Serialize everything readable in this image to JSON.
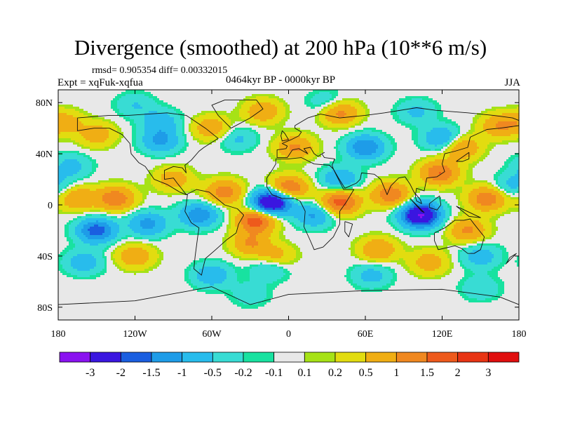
{
  "plot": {
    "title": "Divergence (smoothed) at 200 hPa (10**6 m/s)",
    "stats": "rmsd= 0.905354 diff= 0.00332015",
    "experiment": "Expt = xqFuk-xqfua",
    "period": "0464kyr BP - 0000kyr BP",
    "season": "JJA"
  },
  "chart_data": {
    "type": "heatmap",
    "projection": "cylindrical-equidistant",
    "title": "Divergence (smoothed) at 200 hPa (10**6 m/s)",
    "x_axis": {
      "range": [
        -180,
        180
      ],
      "ticks": [
        {
          "value": -180,
          "label": "180"
        },
        {
          "value": -120,
          "label": "120W"
        },
        {
          "value": -60,
          "label": "60W"
        },
        {
          "value": 0,
          "label": "0"
        },
        {
          "value": 60,
          "label": "60E"
        },
        {
          "value": 120,
          "label": "120E"
        },
        {
          "value": 180,
          "label": "180"
        }
      ]
    },
    "y_axis": {
      "range": [
        -90,
        90
      ],
      "ticks": [
        {
          "value": 80,
          "label": "80N"
        },
        {
          "value": 40,
          "label": "40N"
        },
        {
          "value": 0,
          "label": "0"
        },
        {
          "value": -40,
          "label": "40S"
        },
        {
          "value": -80,
          "label": "80S"
        }
      ]
    },
    "colorbar": {
      "levels": [
        "-3",
        "-2",
        "-1.5",
        "-1",
        "-0.5",
        "-0.2",
        "-0.1",
        "0.1",
        "0.2",
        "0.5",
        "1",
        "1.5",
        "2",
        "3"
      ],
      "colors": [
        "#8a12f0",
        "#3a16e0",
        "#1a5ee0",
        "#1e9ce8",
        "#28bcec",
        "#38dcd4",
        "#18e2a0",
        "#e8e8e8",
        "#a6e216",
        "#e2dc10",
        "#f0ae14",
        "#f08820",
        "#ee5a1c",
        "#e83414",
        "#e00e0e"
      ]
    },
    "features": [
      {
        "lon": -13,
        "lat": 2,
        "value": -3.2
      },
      {
        "lon": 103,
        "lat": -8,
        "value": -3.1
      },
      {
        "lon": -150,
        "lat": -20,
        "value": -1.8
      },
      {
        "lon": -110,
        "lat": -15,
        "value": -1.2
      },
      {
        "lon": -70,
        "lat": -8,
        "value": -1.4
      },
      {
        "lon": 20,
        "lat": -8,
        "value": -1.1
      },
      {
        "lon": 40,
        "lat": 20,
        "value": -1.0
      },
      {
        "lon": 60,
        "lat": 45,
        "value": -1.5
      },
      {
        "lon": 120,
        "lat": 52,
        "value": -1.1
      },
      {
        "lon": -100,
        "lat": 50,
        "value": -1.1
      },
      {
        "lon": -100,
        "lat": 65,
        "value": -0.8
      },
      {
        "lon": -120,
        "lat": 78,
        "value": -0.5
      },
      {
        "lon": 30,
        "lat": 80,
        "value": -0.5
      },
      {
        "lon": 100,
        "lat": 73,
        "value": -0.6
      },
      {
        "lon": -170,
        "lat": 30,
        "value": -0.7
      },
      {
        "lon": -160,
        "lat": -45,
        "value": -0.8
      },
      {
        "lon": -60,
        "lat": -55,
        "value": -0.9
      },
      {
        "lon": -15,
        "lat": -50,
        "value": -0.6
      },
      {
        "lon": 65,
        "lat": -55,
        "value": -0.7
      },
      {
        "lon": 150,
        "lat": -40,
        "value": -0.8
      },
      {
        "lon": 150,
        "lat": -65,
        "value": -0.5
      },
      {
        "lon": -40,
        "lat": 52,
        "value": -0.6
      },
      {
        "lon": 175,
        "lat": 15,
        "value": -0.7
      },
      {
        "lon": -30,
        "lat": -70,
        "value": -0.4
      },
      {
        "lon": -135,
        "lat": 5,
        "value": 1.4
      },
      {
        "lon": -165,
        "lat": 5,
        "value": 1.0
      },
      {
        "lon": -50,
        "lat": 10,
        "value": 1.3
      },
      {
        "lon": -25,
        "lat": -12,
        "value": 1.9
      },
      {
        "lon": 0,
        "lat": 13,
        "value": 1.6
      },
      {
        "lon": 40,
        "lat": 2,
        "value": 1.8
      },
      {
        "lon": 80,
        "lat": 8,
        "value": 1.4
      },
      {
        "lon": 118,
        "lat": 25,
        "value": 1.5
      },
      {
        "lon": 155,
        "lat": 5,
        "value": 1.4
      },
      {
        "lon": 140,
        "lat": -20,
        "value": 1.1
      },
      {
        "lon": 135,
        "lat": 45,
        "value": 1.1
      },
      {
        "lon": 165,
        "lat": 62,
        "value": 1.0
      },
      {
        "lon": 5,
        "lat": 45,
        "value": 1.1
      },
      {
        "lon": 40,
        "lat": 72,
        "value": 1.2
      },
      {
        "lon": -20,
        "lat": 73,
        "value": 0.9
      },
      {
        "lon": -60,
        "lat": 60,
        "value": 0.9
      },
      {
        "lon": -150,
        "lat": 55,
        "value": 0.8
      },
      {
        "lon": -175,
        "lat": 65,
        "value": 0.7
      },
      {
        "lon": -120,
        "lat": -40,
        "value": 0.9
      },
      {
        "lon": -30,
        "lat": -30,
        "value": 1.0
      },
      {
        "lon": 70,
        "lat": -35,
        "value": 1.0
      },
      {
        "lon": 110,
        "lat": -45,
        "value": 0.8
      },
      {
        "lon": -90,
        "lat": 20,
        "value": 0.8
      },
      {
        "lon": -10,
        "lat": -40,
        "value": 0.7
      }
    ],
    "continent_outlines": [
      [
        [
          -165,
          68
        ],
        [
          -140,
          70
        ],
        [
          -125,
          70
        ],
        [
          -95,
          72
        ],
        [
          -80,
          70
        ],
        [
          -65,
          60
        ],
        [
          -55,
          52
        ],
        [
          -66,
          45
        ],
        [
          -70,
          42
        ],
        [
          -76,
          35
        ],
        [
          -81,
          31
        ],
        [
          -80,
          25
        ],
        [
          -83,
          29
        ],
        [
          -90,
          30
        ],
        [
          -97,
          27
        ],
        [
          -97,
          20
        ],
        [
          -90,
          21
        ],
        [
          -87,
          17
        ],
        [
          -83,
          12
        ],
        [
          -80,
          8
        ],
        [
          -85,
          10
        ],
        [
          -95,
          16
        ],
        [
          -105,
          20
        ],
        [
          -112,
          30
        ],
        [
          -117,
          33
        ],
        [
          -123,
          40
        ],
        [
          -124,
          48
        ],
        [
          -130,
          55
        ],
        [
          -140,
          60
        ],
        [
          -152,
          60
        ],
        [
          -165,
          58
        ],
        [
          -165,
          68
        ]
      ],
      [
        [
          -80,
          8
        ],
        [
          -72,
          12
        ],
        [
          -62,
          10
        ],
        [
          -50,
          0
        ],
        [
          -40,
          -3
        ],
        [
          -35,
          -8
        ],
        [
          -39,
          -15
        ],
        [
          -41,
          -22
        ],
        [
          -48,
          -27
        ],
        [
          -58,
          -36
        ],
        [
          -65,
          -42
        ],
        [
          -67,
          -50
        ],
        [
          -68,
          -55
        ],
        [
          -74,
          -50
        ],
        [
          -73,
          -40
        ],
        [
          -71,
          -25
        ],
        [
          -70,
          -18
        ],
        [
          -76,
          -14
        ],
        [
          -81,
          -5
        ],
        [
          -80,
          0
        ],
        [
          -79,
          8
        ],
        [
          -80,
          8
        ]
      ],
      [
        [
          -45,
          60
        ],
        [
          -30,
          68
        ],
        [
          -20,
          75
        ],
        [
          -25,
          82
        ],
        [
          -50,
          82
        ],
        [
          -60,
          78
        ],
        [
          -55,
          70
        ],
        [
          -45,
          60
        ]
      ],
      [
        [
          -10,
          36
        ],
        [
          0,
          36
        ],
        [
          10,
          37
        ],
        [
          20,
          32
        ],
        [
          32,
          31
        ],
        [
          35,
          28
        ],
        [
          43,
          12
        ],
        [
          51,
          12
        ],
        [
          45,
          2
        ],
        [
          40,
          -5
        ],
        [
          40,
          -15
        ],
        [
          35,
          -25
        ],
        [
          27,
          -33
        ],
        [
          20,
          -35
        ],
        [
          17,
          -28
        ],
        [
          12,
          -17
        ],
        [
          13,
          -5
        ],
        [
          9,
          3
        ],
        [
          5,
          5
        ],
        [
          -5,
          5
        ],
        [
          -13,
          8
        ],
        [
          -17,
          14
        ],
        [
          -17,
          21
        ],
        [
          -13,
          27
        ],
        [
          -10,
          32
        ],
        [
          -10,
          36
        ]
      ],
      [
        [
          -9,
          38
        ],
        [
          -9,
          43
        ],
        [
          -2,
          44
        ],
        [
          -1,
          46
        ],
        [
          -5,
          48
        ],
        [
          2,
          51
        ],
        [
          8,
          54
        ],
        [
          10,
          57
        ],
        [
          5,
          60
        ],
        [
          5,
          62
        ],
        [
          15,
          68
        ],
        [
          25,
          71
        ],
        [
          40,
          68
        ],
        [
          60,
          70
        ],
        [
          75,
          72
        ],
        [
          100,
          76
        ],
        [
          115,
          74
        ],
        [
          140,
          72
        ],
        [
          160,
          70
        ],
        [
          175,
          68
        ],
        [
          180,
          66
        ],
        [
          180,
          62
        ],
        [
          165,
          60
        ],
        [
          155,
          59
        ],
        [
          142,
          53
        ],
        [
          140,
          45
        ],
        [
          130,
          42
        ],
        [
          122,
          40
        ],
        [
          120,
          32
        ],
        [
          122,
          26
        ],
        [
          116,
          22
        ],
        [
          108,
          21
        ],
        [
          106,
          11
        ],
        [
          100,
          13
        ],
        [
          99,
          7
        ],
        [
          100,
          3
        ],
        [
          104,
          1
        ],
        [
          103,
          4
        ],
        [
          98,
          10
        ],
        [
          95,
          16
        ],
        [
          91,
          22
        ],
        [
          86,
          21
        ],
        [
          80,
          15
        ],
        [
          77,
          8
        ],
        [
          72,
          20
        ],
        [
          67,
          24
        ],
        [
          57,
          25
        ],
        [
          56,
          20
        ],
        [
          53,
          17
        ],
        [
          44,
          13
        ],
        [
          39,
          21
        ],
        [
          35,
          28
        ],
        [
          34,
          31
        ],
        [
          36,
          36
        ],
        [
          28,
          37
        ],
        [
          26,
          40
        ],
        [
          28,
          41
        ],
        [
          23,
          38
        ],
        [
          20,
          40
        ],
        [
          17,
          45
        ],
        [
          12,
          44
        ],
        [
          15,
          40
        ],
        [
          8,
          44
        ],
        [
          3,
          43
        ],
        [
          -1,
          37
        ],
        [
          -9,
          37
        ],
        [
          -9,
          38
        ]
      ],
      [
        [
          114,
          -22
        ],
        [
          122,
          -18
        ],
        [
          130,
          -12
        ],
        [
          137,
          -12
        ],
        [
          142,
          -11
        ],
        [
          145,
          -15
        ],
        [
          153,
          -25
        ],
        [
          150,
          -35
        ],
        [
          145,
          -38
        ],
        [
          140,
          -38
        ],
        [
          135,
          -34
        ],
        [
          130,
          -32
        ],
        [
          117,
          -35
        ],
        [
          114,
          -28
        ],
        [
          114,
          -22
        ]
      ],
      [
        [
          95,
          5
        ],
        [
          106,
          -6
        ],
        [
          104,
          -5
        ],
        [
          95,
          5
        ]
      ],
      [
        [
          110,
          1
        ],
        [
          118,
          7
        ],
        [
          119,
          0
        ],
        [
          116,
          -4
        ],
        [
          110,
          -2
        ],
        [
          110,
          1
        ]
      ],
      [
        [
          131,
          -1
        ],
        [
          150,
          -10
        ],
        [
          141,
          -9
        ],
        [
          131,
          -1
        ]
      ],
      [
        [
          131,
          34
        ],
        [
          141,
          41
        ],
        [
          141,
          36
        ],
        [
          136,
          34
        ],
        [
          131,
          34
        ]
      ],
      [
        [
          -5,
          50
        ],
        [
          0,
          51
        ],
        [
          -3,
          56
        ],
        [
          -5,
          58
        ],
        [
          -6,
          54
        ],
        [
          -5,
          50
        ]
      ],
      [
        [
          44,
          -13
        ],
        [
          50,
          -15
        ],
        [
          47,
          -25
        ],
        [
          44,
          -21
        ],
        [
          44,
          -13
        ]
      ],
      [
        [
          173,
          -41
        ],
        [
          178,
          -38
        ],
        [
          170,
          -46
        ],
        [
          173,
          -41
        ]
      ],
      [
        [
          -180,
          -78
        ],
        [
          -120,
          -75
        ],
        [
          -60,
          -64
        ],
        [
          -30,
          -78
        ],
        [
          0,
          -70
        ],
        [
          60,
          -67
        ],
        [
          120,
          -66
        ],
        [
          165,
          -72
        ],
        [
          180,
          -78
        ]
      ]
    ]
  }
}
